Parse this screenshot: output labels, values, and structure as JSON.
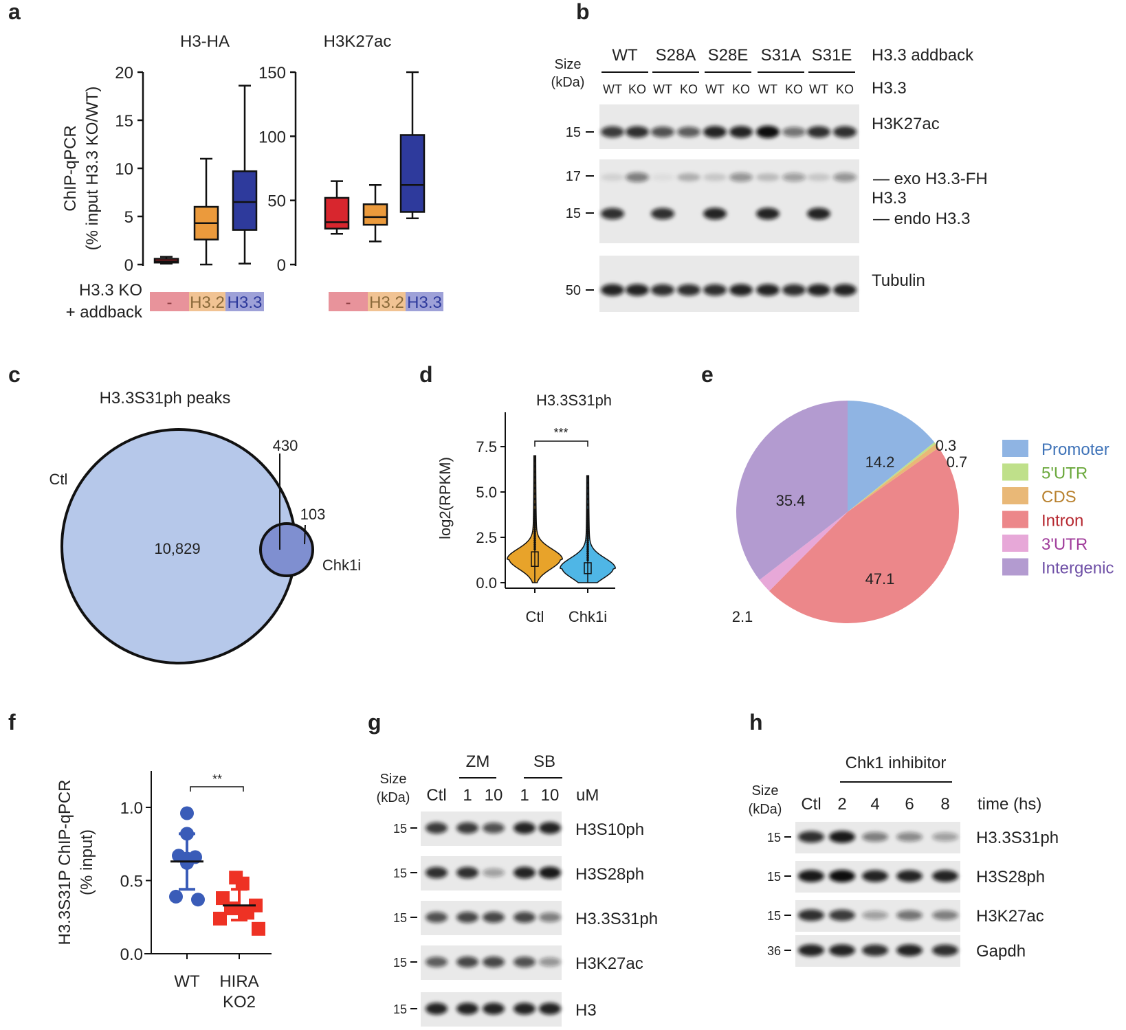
{
  "panel_labels": [
    "a",
    "b",
    "c",
    "d",
    "e",
    "f",
    "g",
    "h"
  ],
  "panel_a": {
    "ylabel_line1": "ChIP-qPCR",
    "ylabel_line2": "(% input H3.3 KO/WT)",
    "addback_label_line1": "H3.3 KO",
    "addback_label_line2": "+ addback",
    "addback_groups": [
      {
        "label": "-",
        "color": "#e8939b"
      },
      {
        "label": "H3.2",
        "color": "#f1c393"
      },
      {
        "label": "H3.3",
        "color": "#9ea1d8"
      }
    ]
  },
  "panel_b": {
    "size_label_line1": "Size",
    "size_label_line2": "(kDa)",
    "groups": [
      "WT",
      "S28A",
      "S28E",
      "S31A",
      "S31E"
    ],
    "group_row_label": "H3.3 addback",
    "lanes": [
      "WT",
      "KO",
      "WT",
      "KO",
      "WT",
      "KO",
      "WT",
      "KO",
      "WT",
      "KO"
    ],
    "lane_row_label": "H3.3",
    "blots": [
      {
        "label": "H3K27ac",
        "size_markers": [
          "15"
        ],
        "bands": [
          [
            0.8,
            0.85,
            0.7,
            0.65,
            0.9,
            0.9,
            1.0,
            0.55,
            0.85,
            0.85
          ]
        ]
      },
      {
        "labels": [
          "— exo H3.3-FH",
          "H3.3",
          "— endo H3.3"
        ],
        "size_markers": [
          "17",
          "15"
        ],
        "bands": [
          [
            0.1,
            0.5,
            0.05,
            0.25,
            0.15,
            0.4,
            0.2,
            0.35,
            0.15,
            0.4
          ],
          [
            0.85,
            0,
            0.85,
            0,
            0.9,
            0,
            0.9,
            0,
            0.9,
            0
          ]
        ]
      },
      {
        "label": "Tubulin",
        "size_markers": [
          "50"
        ],
        "bands": [
          [
            0.9,
            0.9,
            0.85,
            0.85,
            0.85,
            0.9,
            0.9,
            0.85,
            0.9,
            0.9
          ]
        ]
      }
    ]
  },
  "panel_c": {
    "title": "H3.3S31ph peaks",
    "sets": [
      {
        "name": "Ctl",
        "unique": "10,829",
        "color": "#b6c8ea"
      },
      {
        "name": "Chk1i",
        "unique": "103",
        "color": "#7f8fd0"
      }
    ],
    "overlap": "430"
  },
  "panel_g": {
    "size_label_line1": "Size",
    "size_label_line2": "(kDa)",
    "groups": [
      "ZM",
      "SB"
    ],
    "lanes": [
      "Ctl",
      "1",
      "10",
      "1",
      "10"
    ],
    "unit": "uM",
    "blots": [
      {
        "label": "H3S10ph",
        "size": "15",
        "bands": [
          0.8,
          0.8,
          0.7,
          0.9,
          0.9
        ]
      },
      {
        "label": "H3S28ph",
        "size": "15",
        "bands": [
          0.85,
          0.85,
          0.35,
          0.9,
          0.95
        ]
      },
      {
        "label": "H3.3S31ph",
        "size": "15",
        "bands": [
          0.7,
          0.75,
          0.75,
          0.75,
          0.5
        ]
      },
      {
        "label": "H3K27ac",
        "size": "15",
        "bands": [
          0.65,
          0.75,
          0.75,
          0.7,
          0.4
        ]
      },
      {
        "label": "H3",
        "size": "15",
        "bands": [
          0.9,
          0.9,
          0.9,
          0.9,
          0.9
        ]
      }
    ]
  },
  "panel_h": {
    "size_label_line1": "Size",
    "size_label_line2": "(kDa)",
    "group": "Chk1 inhibitor",
    "lanes": [
      "Ctl",
      "2",
      "4",
      "6",
      "8"
    ],
    "unit": "time (hs)",
    "blots": [
      {
        "label": "H3.3S31ph",
        "size": "15",
        "bands": [
          0.85,
          0.95,
          0.5,
          0.45,
          0.35
        ]
      },
      {
        "label": "H3S28ph",
        "size": "15",
        "bands": [
          0.95,
          1.0,
          0.9,
          0.9,
          0.9
        ]
      },
      {
        "label": "H3K27ac",
        "size": "15",
        "bands": [
          0.85,
          0.8,
          0.35,
          0.55,
          0.5
        ]
      },
      {
        "label": "Gapdh",
        "size": "36",
        "bands": [
          0.9,
          0.9,
          0.85,
          0.9,
          0.85
        ]
      }
    ]
  },
  "chart_data": [
    {
      "type": "box",
      "title": "H3-HA",
      "ylim": [
        0,
        20
      ],
      "yticks": [
        "0",
        "5",
        "10",
        "15",
        "20"
      ],
      "categories": [
        "-",
        "H3.2",
        "H3.3"
      ],
      "colors": [
        "#d8262e",
        "#eb9a3c",
        "#2e3a9c"
      ],
      "boxes": [
        {
          "min": 0.1,
          "q1": 0.2,
          "median": 0.35,
          "q3": 0.6,
          "max": 0.8
        },
        {
          "min": 0,
          "q1": 2.6,
          "median": 4.3,
          "q3": 6.0,
          "max": 11
        },
        {
          "min": 0.1,
          "q1": 3.6,
          "median": 6.5,
          "q3": 9.7,
          "max": 18.6
        }
      ]
    },
    {
      "type": "box",
      "title": "H3K27ac",
      "ylim": [
        0,
        150
      ],
      "yticks": [
        "0",
        "50",
        "100",
        "150"
      ],
      "categories": [
        "-",
        "H3.2",
        "H3.3"
      ],
      "colors": [
        "#d8262e",
        "#eb9a3c",
        "#2e3a9c"
      ],
      "boxes": [
        {
          "min": 24,
          "q1": 28,
          "median": 33,
          "q3": 52,
          "max": 65
        },
        {
          "min": 18,
          "q1": 31,
          "median": 37,
          "q3": 47,
          "max": 62
        },
        {
          "min": 36,
          "q1": 41,
          "median": 62,
          "q3": 101,
          "max": 150
        }
      ]
    },
    {
      "type": "violin",
      "title": "H3.3S31ph",
      "ylabel": "log2(RPKM)",
      "ylim": [
        0,
        7.5
      ],
      "yticks": [
        "0.0",
        "2.5",
        "5.0",
        "7.5"
      ],
      "significance": "***",
      "categories": [
        "Ctl",
        "Chk1i"
      ],
      "colors": [
        "#e8a32a",
        "#4fb6e6"
      ],
      "series": [
        {
          "min": 0,
          "q1": 0.9,
          "median": 1.3,
          "q3": 1.7,
          "max": 7.0,
          "mode": 1.3
        },
        {
          "min": 0,
          "q1": 0.5,
          "median": 0.8,
          "q3": 1.1,
          "max": 5.9,
          "mode": 0.8
        }
      ]
    },
    {
      "type": "pie",
      "labels": [
        "Promoter",
        "5'UTR",
        "CDS",
        "Intron",
        "3'UTR",
        "Intergenic"
      ],
      "values": [
        14.2,
        0.3,
        0.7,
        47.1,
        2.1,
        35.4
      ],
      "value_labels": [
        "14.2",
        "0.3",
        "0.7",
        "47.1",
        "2.1",
        "35.4"
      ],
      "colors": [
        "#8fb4e3",
        "#bfe08a",
        "#e9b877",
        "#ec878a",
        "#e7a8d8",
        "#b39bd0"
      ],
      "legend_text_colors": [
        "#3f73b8",
        "#6aa83b",
        "#b8812e",
        "#b5262e",
        "#a03c9b",
        "#6e4fa6"
      ],
      "legend": "right"
    },
    {
      "type": "scatter",
      "ylabel_line1": "H3.3S31P ChIP-qPCR",
      "ylabel_line2": "(% input)",
      "ylim": [
        0,
        1.2
      ],
      "yticks": [
        "0.0",
        "0.5",
        "1.0"
      ],
      "significance": "**",
      "categories": [
        "WT",
        "HIRA KO2"
      ],
      "category_lines": [
        [
          "WT"
        ],
        [
          "HIRA",
          "KO2"
        ]
      ],
      "colors": [
        "#3a5cb8",
        "#ee3224"
      ],
      "markers": [
        "circle",
        "square"
      ],
      "series": [
        {
          "points": [
            0.96,
            0.82,
            0.67,
            0.66,
            0.65,
            0.62,
            0.39,
            0.37
          ],
          "mean": 0.63,
          "sd_low": 0.44,
          "sd_high": 0.82
        },
        {
          "points": [
            0.52,
            0.48,
            0.38,
            0.33,
            0.31,
            0.28,
            0.24,
            0.17
          ],
          "mean": 0.33,
          "sd_low": 0.23,
          "sd_high": 0.44
        }
      ]
    }
  ]
}
